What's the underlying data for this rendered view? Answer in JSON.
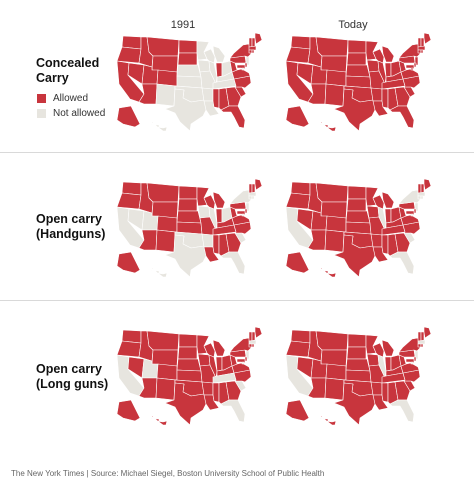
{
  "columns": [
    "1991",
    "Today"
  ],
  "colors": {
    "allowed": "#c8353d",
    "not_allowed": "#e7e5df",
    "border": "#ffffff"
  },
  "legend": {
    "allowed": "Allowed",
    "not_allowed": "Not allowed"
  },
  "rows": [
    {
      "title_line1": "Concealed",
      "title_line2": "Carry",
      "maps": [
        {
          "column": "1991",
          "not_allowed": [
            "TX",
            "OK",
            "KS",
            "NE",
            "MO",
            "IL",
            "WI",
            "IA",
            "NM",
            "AR",
            "LA",
            "OH",
            "KY",
            "TN",
            "MI",
            "MN",
            "HI",
            "NJ",
            "DC"
          ]
        },
        {
          "column": "Today",
          "not_allowed": []
        }
      ]
    },
    {
      "title_line1": "Open carry",
      "title_line2": "(Handguns)",
      "maps": [
        {
          "column": "1991",
          "not_allowed": [
            "CA",
            "TX",
            "OK",
            "AR",
            "IL",
            "FL",
            "SC",
            "NY",
            "NJ",
            "MA",
            "RI",
            "CT",
            "DC",
            "UT",
            "IA",
            "OH",
            "NV",
            "HI"
          ]
        },
        {
          "column": "Today",
          "not_allowed": [
            "CA",
            "IL",
            "FL",
            "SC",
            "NY",
            "NJ",
            "MA",
            "RI",
            "CT",
            "DC"
          ]
        }
      ]
    },
    {
      "title_line1": "Open carry",
      "title_line2": "(Long guns)",
      "maps": [
        {
          "column": "1991",
          "not_allowed": [
            "CA",
            "UT",
            "TN",
            "FL",
            "SC",
            "NJ",
            "MA",
            "DC"
          ]
        },
        {
          "column": "Today",
          "not_allowed": [
            "CA",
            "IL",
            "FL",
            "NJ",
            "MA",
            "DC"
          ]
        }
      ]
    }
  ],
  "footer": "The New York Times | Source: Michael Siegel, Boston University School of Public Health"
}
